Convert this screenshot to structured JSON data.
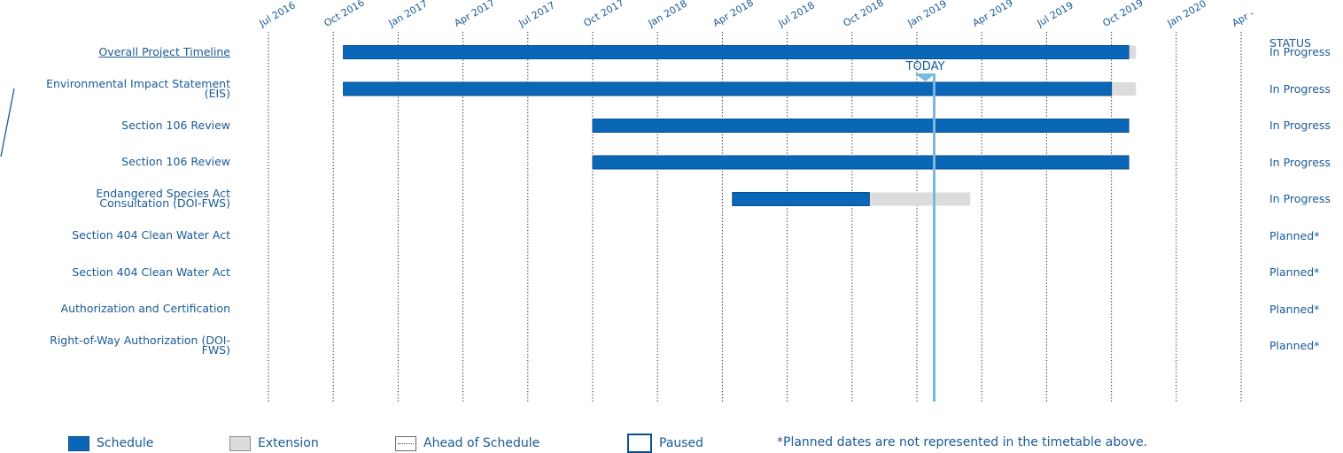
{
  "chart_data": {
    "type": "gantt",
    "status_header": "STATUS",
    "today_label": "TODAY",
    "today": "2019-01-25",
    "x_ticks": [
      "Jul 2016",
      "Oct 2016",
      "Jan 2017",
      "Apr 2017",
      "Jul 2017",
      "Oct 2017",
      "Jan 2018",
      "Apr 2018",
      "Jul 2018",
      "Oct 2018",
      "Jan 2019",
      "Apr 2019",
      "Jul 2019",
      "Oct 2019",
      "Jan 2020",
      "Apr -"
    ],
    "tasks": [
      {
        "label": "Overall Project Timeline",
        "status": "In Progress",
        "schedule": [
          "2016-10-15",
          "2019-10-25"
        ],
        "extension": [
          "2019-10-25",
          "2019-11-05"
        ],
        "link": true
      },
      {
        "label": "Environmental Impact Statement\n(EIS)",
        "status": "In Progress",
        "schedule": [
          "2016-10-15",
          "2019-10-01"
        ],
        "extension": [
          "2019-10-01",
          "2019-11-05"
        ]
      },
      {
        "label": "Section 106 Review",
        "status": "In Progress",
        "schedule": [
          "2017-10-01",
          "2019-10-25"
        ]
      },
      {
        "label": "Section 106 Review",
        "status": "In Progress",
        "schedule": [
          "2017-10-01",
          "2019-10-25"
        ]
      },
      {
        "label": "Endangered Species Act\nConsultation (DOI-FWS)",
        "status": "In Progress",
        "schedule": [
          "2018-04-15",
          "2018-10-25"
        ],
        "extension": [
          "2018-10-25",
          "2019-03-15"
        ]
      },
      {
        "label": "Section 404 Clean Water Act",
        "status": "Planned*"
      },
      {
        "label": "Section 404 Clean Water Act",
        "status": "Planned*"
      },
      {
        "label": "Authorization and Certification",
        "status": "Planned*"
      },
      {
        "label": "Right-of-Way Authorization (DOI-\nFWS)",
        "status": "Planned*"
      }
    ],
    "legend": [
      {
        "key": "schedule",
        "label": "Schedule"
      },
      {
        "key": "extension",
        "label": "Extension"
      },
      {
        "key": "ahead",
        "label": "Ahead of Schedule"
      },
      {
        "key": "paused",
        "label": "Paused"
      }
    ],
    "footnote": "*Planned dates are not represented in the timetable above.",
    "colors": {
      "schedule": "#0a67b8",
      "schedule_border": "#0a4f8f",
      "extension": "#dcdcdc",
      "today": "#7ab8dc",
      "grid": "#222222",
      "text": "#1a5a96"
    }
  }
}
